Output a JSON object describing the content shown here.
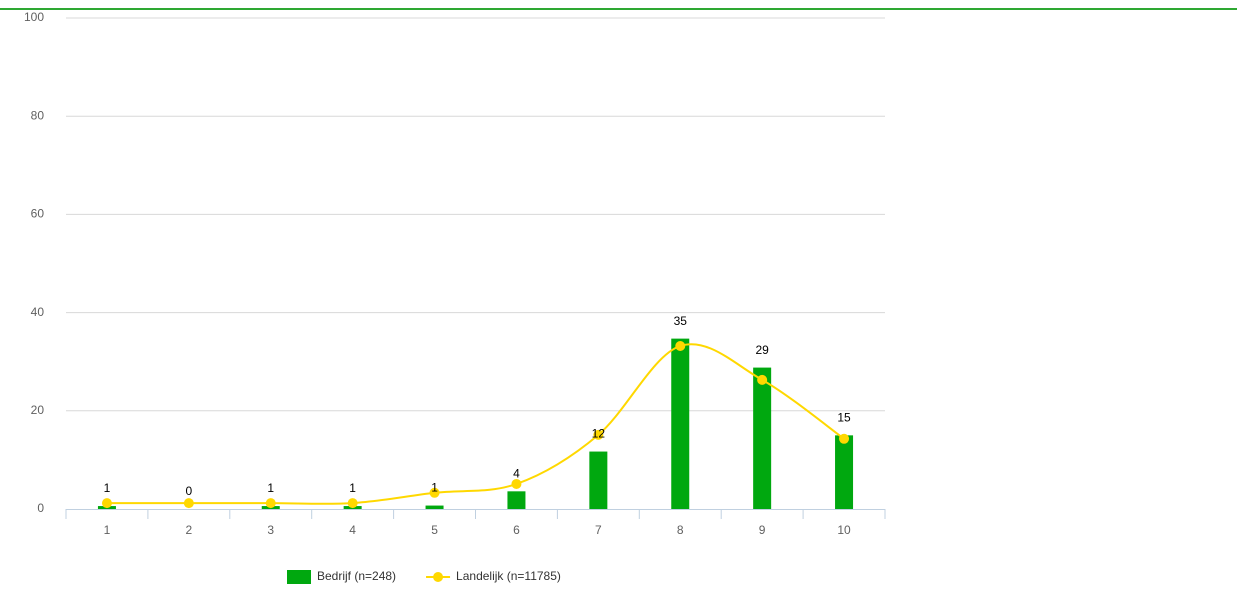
{
  "chart_data": {
    "type": "bar",
    "categories": [
      "1",
      "2",
      "3",
      "4",
      "5",
      "6",
      "7",
      "8",
      "9",
      "10"
    ],
    "series": [
      {
        "name": "Bedrijf (n=248)",
        "type": "bar",
        "color": "#00a80f",
        "values": [
          0.6,
          0,
          0.6,
          0.6,
          0.7,
          3.6,
          11.7,
          34.7,
          28.8,
          15.0
        ],
        "value_labels": [
          "1",
          "0",
          "1",
          "1",
          "1",
          "4",
          "12",
          "35",
          "29",
          "15"
        ]
      },
      {
        "name": "Landelijk (n=11785)",
        "type": "spline",
        "color": "#ffd800",
        "values": [
          1.2,
          1.2,
          1.2,
          1.2,
          3.3,
          5.1,
          15.1,
          33.2,
          26.3,
          14.3
        ]
      }
    ],
    "ylim": [
      0,
      100
    ],
    "yticks": [
      0,
      20,
      40,
      60,
      80,
      100
    ],
    "grid": true,
    "legend": "bottom"
  }
}
